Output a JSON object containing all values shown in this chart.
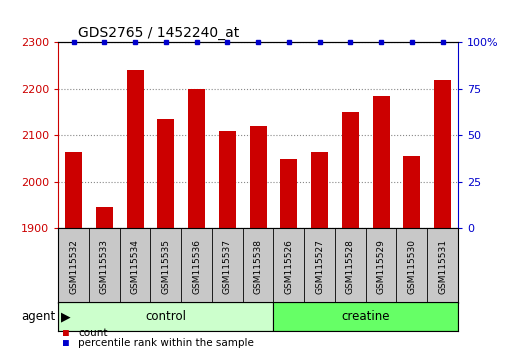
{
  "title": "GDS2765 / 1452240_at",
  "samples": [
    "GSM115532",
    "GSM115533",
    "GSM115534",
    "GSM115535",
    "GSM115536",
    "GSM115537",
    "GSM115538",
    "GSM115526",
    "GSM115527",
    "GSM115528",
    "GSM115529",
    "GSM115530",
    "GSM115531"
  ],
  "counts": [
    2065,
    1945,
    2240,
    2135,
    2200,
    2110,
    2120,
    2050,
    2065,
    2150,
    2185,
    2055,
    2220
  ],
  "percentile_ranks": [
    100,
    100,
    100,
    100,
    100,
    100,
    100,
    100,
    100,
    100,
    100,
    100,
    100
  ],
  "bar_color": "#cc0000",
  "dot_color": "#0000cc",
  "ylim_left": [
    1900,
    2300
  ],
  "ylim_right": [
    0,
    100
  ],
  "yticks_left": [
    1900,
    2000,
    2100,
    2200,
    2300
  ],
  "yticks_right": [
    0,
    25,
    50,
    75,
    100
  ],
  "ytick_labels_right": [
    "0",
    "25",
    "50",
    "75",
    "100%"
  ],
  "groups": [
    {
      "label": "control",
      "start": 0,
      "end": 7,
      "color": "#ccffcc"
    },
    {
      "label": "creatine",
      "start": 7,
      "end": 13,
      "color": "#66ff66"
    }
  ],
  "agent_label": "agent",
  "legend": [
    {
      "label": "count",
      "color": "#cc0000"
    },
    {
      "label": "percentile rank within the sample",
      "color": "#0000cc"
    }
  ],
  "background_color": "#ffffff",
  "plot_bg_color": "#ffffff",
  "grid_color": "#888888",
  "tick_label_color_left": "#cc0000",
  "tick_label_color_right": "#0000cc",
  "bar_width": 0.55,
  "tick_box_color": "#c8c8c8"
}
